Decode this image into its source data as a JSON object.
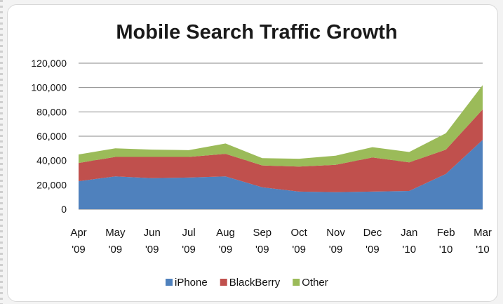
{
  "chart_data": {
    "type": "area",
    "stacked": true,
    "title": "Mobile Search Traffic Growth",
    "xlabel": "",
    "ylabel": "",
    "ylim": [
      0,
      120000
    ],
    "yticks": [
      "0",
      "20,000",
      "40,000",
      "60,000",
      "80,000",
      "100,000",
      "120,000"
    ],
    "categories": [
      [
        "Apr",
        "'09"
      ],
      [
        "May",
        "'09"
      ],
      [
        "Jun",
        "'09"
      ],
      [
        "Jul",
        "'09"
      ],
      [
        "Aug",
        "'09"
      ],
      [
        "Sep",
        "'09"
      ],
      [
        "Oct",
        "'09"
      ],
      [
        "Nov",
        "'09"
      ],
      [
        "Dec",
        "'09"
      ],
      [
        "Jan",
        "'10"
      ],
      [
        "Feb",
        "'10"
      ],
      [
        "Mar",
        "'10"
      ]
    ],
    "series": [
      {
        "name": "iPhone",
        "color": "#4f81bd",
        "values": [
          23000,
          27000,
          25500,
          26000,
          27000,
          18000,
          14500,
          14000,
          14500,
          15000,
          29000,
          57000
        ]
      },
      {
        "name": "BlackBerry",
        "color": "#c0504d",
        "values": [
          15000,
          16000,
          17500,
          17000,
          18500,
          18000,
          20500,
          22500,
          28000,
          23500,
          20000,
          25000
        ]
      },
      {
        "name": "Other",
        "color": "#9bbb59",
        "values": [
          7000,
          7000,
          6000,
          5500,
          8500,
          6000,
          6500,
          7500,
          8500,
          8500,
          13500,
          20000
        ]
      }
    ],
    "grid": true,
    "legend": "bottom"
  }
}
